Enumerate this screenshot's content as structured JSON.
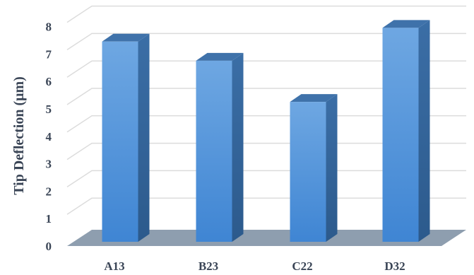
{
  "chart_data": {
    "type": "bar",
    "style": "3d",
    "categories": [
      "A13",
      "B23",
      "C22",
      "D32"
    ],
    "values": [
      7.3,
      6.6,
      5.1,
      7.8
    ],
    "title": "",
    "xlabel": "",
    "ylabel": "Tip Deflection (μm)",
    "ylim": [
      0,
      8
    ],
    "yticks": [
      "0",
      "1",
      "2",
      "3",
      "4",
      "5",
      "6",
      "7",
      "8"
    ],
    "grid": true,
    "legend": "none",
    "colors": {
      "bar_front": "#4a8fd6",
      "bar_side": "#2f5f93",
      "bar_top": "#3f72aa",
      "floor": "#8e9eaf",
      "grid": "#dcdcdc"
    }
  }
}
